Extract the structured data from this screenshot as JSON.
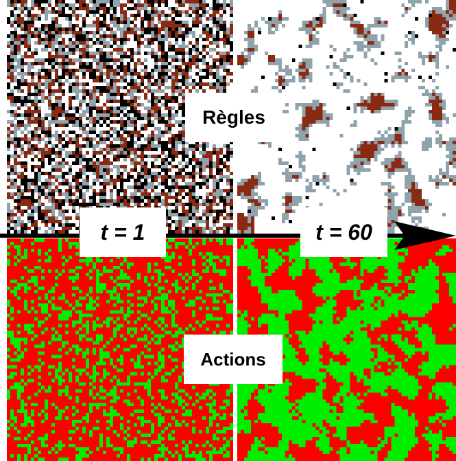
{
  "labels": {
    "regles": "Règles",
    "actions": "Actions",
    "t_start": "t = 1",
    "t_end": "t = 60"
  },
  "colors": {
    "rules_palette": [
      "#ffffff",
      "#000000",
      "#8b2a12",
      "#8fa3ad"
    ],
    "actions_palette": [
      "#ff0000",
      "#00ee00"
    ],
    "arrow": "#000000",
    "divider": "#ffffff"
  },
  "panels": {
    "rules_t1": "mixed random noise",
    "rules_t60": "clustered, mostly white",
    "actions_t1": "mostly red, scattered green",
    "actions_t60": "large green clusters"
  }
}
